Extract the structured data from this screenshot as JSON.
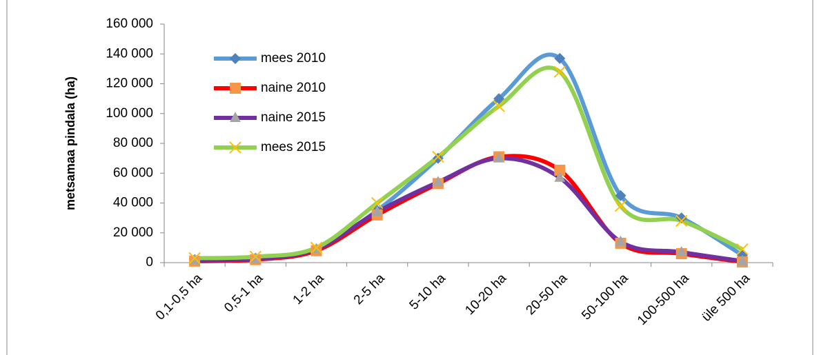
{
  "chart_data": {
    "type": "line",
    "y_label": "metsamaa pindala (ha)",
    "categories": [
      "0,1-0,5 ha",
      "0,5-1 ha",
      "1-2 ha",
      "2-5 ha",
      "5-10 ha",
      "10-20 ha",
      "20-50 ha",
      "50-100 ha",
      "100-500 ha",
      "üle 500 ha"
    ],
    "series": [
      {
        "name": "mees 2010",
        "color": "#5b9bd5",
        "marker": "diamond",
        "marker_color": "#4f81bd",
        "values": [
          2000,
          3000,
          9000,
          35000,
          70000,
          110000,
          137000,
          45000,
          30000,
          5000
        ]
      },
      {
        "name": "naine 2010",
        "color": "#ff0000",
        "marker": "square",
        "marker_color": "#f79646",
        "values": [
          1000,
          2000,
          8000,
          32000,
          53000,
          71000,
          62000,
          13000,
          6000,
          500
        ]
      },
      {
        "name": "naine 2015",
        "color": "#7030a0",
        "marker": "triangle",
        "marker_color": "#a5a5a5",
        "values": [
          1500,
          2500,
          9000,
          34000,
          54000,
          70000,
          57000,
          14000,
          7000,
          1000
        ]
      },
      {
        "name": "mees 2015",
        "color": "#92d050",
        "marker": "x",
        "marker_color": "#ffc000",
        "values": [
          3000,
          4000,
          10000,
          40000,
          71000,
          105000,
          128000,
          38000,
          28000,
          9000
        ]
      }
    ],
    "ylim": [
      0,
      160000
    ],
    "yticks": [
      {
        "value": 0,
        "label": "0"
      },
      {
        "value": 20000,
        "label": "20 000"
      },
      {
        "value": 40000,
        "label": "40 000"
      },
      {
        "value": 60000,
        "label": "60 000"
      },
      {
        "value": 80000,
        "label": "80 000"
      },
      {
        "value": 100000,
        "label": "100 000"
      },
      {
        "value": 120000,
        "label": "120 000"
      },
      {
        "value": 140000,
        "label": "140 000"
      },
      {
        "value": 160000,
        "label": "160 000"
      }
    ],
    "grid": false,
    "legend": "upper left",
    "smooth": true
  }
}
